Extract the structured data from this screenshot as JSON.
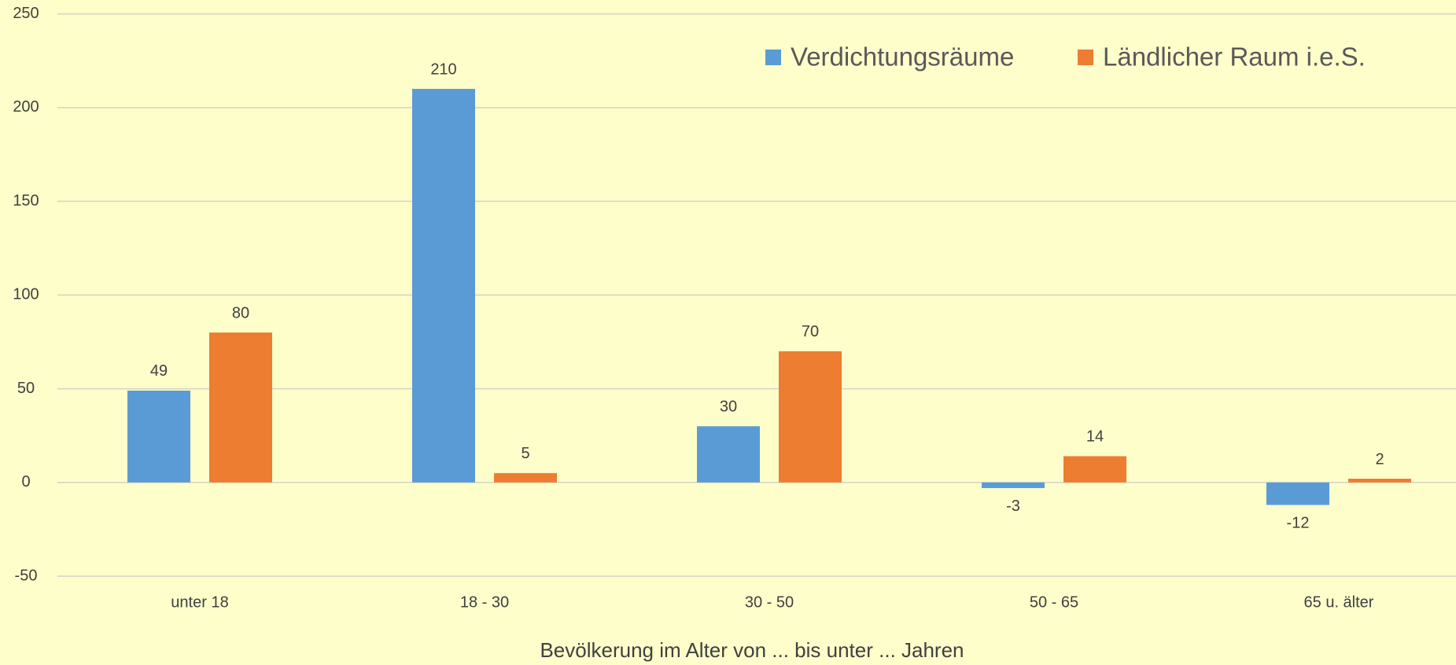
{
  "chart_data": {
    "type": "bar",
    "x_label": "Bevölkerung im Alter von ... bis unter ... Jahren",
    "categories": [
      "unter 18",
      "18 - 30",
      "30 - 50",
      "50 - 65",
      "65 u. älter"
    ],
    "series": [
      {
        "name": "Verdichtungsräume",
        "color": "#5b9bd5",
        "values": [
          49,
          210,
          30,
          -3,
          -12
        ]
      },
      {
        "name": "Ländlicher Raum i.e.S.",
        "color": "#ed7d31",
        "values": [
          80,
          5,
          70,
          14,
          2
        ]
      }
    ],
    "ylim": [
      -50,
      250
    ],
    "yticks": [
      -50,
      0,
      50,
      100,
      150,
      200,
      250
    ],
    "grid": true,
    "legend": "top-right"
  }
}
